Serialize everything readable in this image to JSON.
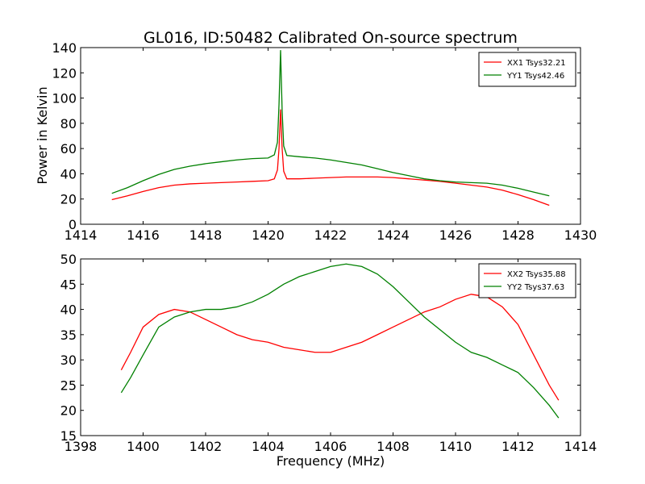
{
  "chart_data": [
    {
      "type": "line",
      "title": "GL016, ID:50482 Calibrated On-source spectrum",
      "xlabel": "",
      "ylabel": "Power in Kelvin",
      "xlim": [
        1414,
        1430
      ],
      "ylim": [
        0,
        140
      ],
      "xticks": [
        1414,
        1416,
        1418,
        1420,
        1422,
        1424,
        1426,
        1428,
        1430
      ],
      "yticks": [
        0,
        20,
        40,
        60,
        80,
        100,
        120,
        140
      ],
      "grid": false,
      "legend_position": "top-right",
      "series": [
        {
          "name": "XX1 Tsys32.21",
          "color": "#ff0000",
          "points": [
            [
              1415.0,
              19.5
            ],
            [
              1415.5,
              22.5
            ],
            [
              1416.0,
              26.0
            ],
            [
              1416.5,
              29.0
            ],
            [
              1417.0,
              31.0
            ],
            [
              1417.5,
              32.0
            ],
            [
              1418.0,
              32.5
            ],
            [
              1418.5,
              33.0
            ],
            [
              1419.0,
              33.5
            ],
            [
              1419.5,
              34.0
            ],
            [
              1420.0,
              34.5
            ],
            [
              1420.2,
              36.0
            ],
            [
              1420.3,
              43.0
            ],
            [
              1420.35,
              60.0
            ],
            [
              1420.4,
              91.0
            ],
            [
              1420.45,
              60.0
            ],
            [
              1420.5,
              42.0
            ],
            [
              1420.6,
              36.0
            ],
            [
              1421.0,
              36.0
            ],
            [
              1421.5,
              36.5
            ],
            [
              1422.0,
              37.0
            ],
            [
              1422.5,
              37.5
            ],
            [
              1423.0,
              37.5
            ],
            [
              1423.5,
              37.5
            ],
            [
              1424.0,
              37.0
            ],
            [
              1424.5,
              36.0
            ],
            [
              1425.0,
              35.0
            ],
            [
              1425.5,
              34.0
            ],
            [
              1426.0,
              32.5
            ],
            [
              1426.5,
              31.0
            ],
            [
              1427.0,
              29.5
            ],
            [
              1427.5,
              27.0
            ],
            [
              1428.0,
              23.5
            ],
            [
              1428.5,
              19.5
            ],
            [
              1429.0,
              15.0
            ]
          ]
        },
        {
          "name": "YY1 Tsys42.46",
          "color": "#008000",
          "points": [
            [
              1415.0,
              24.5
            ],
            [
              1415.5,
              29.0
            ],
            [
              1416.0,
              34.5
            ],
            [
              1416.5,
              39.5
            ],
            [
              1417.0,
              43.5
            ],
            [
              1417.5,
              46.0
            ],
            [
              1418.0,
              48.0
            ],
            [
              1418.5,
              49.5
            ],
            [
              1419.0,
              51.0
            ],
            [
              1419.5,
              52.0
            ],
            [
              1420.0,
              52.5
            ],
            [
              1420.2,
              55.0
            ],
            [
              1420.3,
              65.0
            ],
            [
              1420.35,
              95.0
            ],
            [
              1420.4,
              138.0
            ],
            [
              1420.45,
              90.0
            ],
            [
              1420.5,
              62.0
            ],
            [
              1420.6,
              54.5
            ],
            [
              1421.0,
              53.5
            ],
            [
              1421.5,
              52.5
            ],
            [
              1422.0,
              51.0
            ],
            [
              1422.5,
              49.0
            ],
            [
              1423.0,
              47.0
            ],
            [
              1423.5,
              44.0
            ],
            [
              1424.0,
              41.0
            ],
            [
              1424.5,
              38.5
            ],
            [
              1425.0,
              36.0
            ],
            [
              1425.5,
              34.5
            ],
            [
              1426.0,
              33.5
            ],
            [
              1426.5,
              33.0
            ],
            [
              1427.0,
              32.5
            ],
            [
              1427.5,
              31.0
            ],
            [
              1428.0,
              28.5
            ],
            [
              1428.5,
              25.5
            ],
            [
              1429.0,
              22.5
            ]
          ]
        }
      ]
    },
    {
      "type": "line",
      "title": "",
      "xlabel": "Frequency (MHz)",
      "ylabel": "",
      "xlim": [
        1398,
        1414
      ],
      "ylim": [
        15,
        50
      ],
      "xticks": [
        1398,
        1400,
        1402,
        1404,
        1406,
        1408,
        1410,
        1412,
        1414
      ],
      "yticks": [
        15,
        20,
        25,
        30,
        35,
        40,
        45,
        50
      ],
      "grid": false,
      "legend_position": "top-right",
      "series": [
        {
          "name": "XX2 Tsys35.88",
          "color": "#ff0000",
          "points": [
            [
              1399.3,
              28.0
            ],
            [
              1399.6,
              31.5
            ],
            [
              1400.0,
              36.5
            ],
            [
              1400.5,
              39.0
            ],
            [
              1401.0,
              40.0
            ],
            [
              1401.5,
              39.5
            ],
            [
              1402.0,
              38.0
            ],
            [
              1402.5,
              36.5
            ],
            [
              1403.0,
              35.0
            ],
            [
              1403.5,
              34.0
            ],
            [
              1404.0,
              33.5
            ],
            [
              1404.5,
              32.5
            ],
            [
              1405.0,
              32.0
            ],
            [
              1405.5,
              31.5
            ],
            [
              1406.0,
              31.5
            ],
            [
              1406.5,
              32.5
            ],
            [
              1407.0,
              33.5
            ],
            [
              1407.5,
              35.0
            ],
            [
              1408.0,
              36.5
            ],
            [
              1408.5,
              38.0
            ],
            [
              1409.0,
              39.5
            ],
            [
              1409.5,
              40.5
            ],
            [
              1410.0,
              42.0
            ],
            [
              1410.5,
              43.0
            ],
            [
              1411.0,
              42.5
            ],
            [
              1411.5,
              40.5
            ],
            [
              1412.0,
              37.0
            ],
            [
              1412.5,
              31.0
            ],
            [
              1413.0,
              25.0
            ],
            [
              1413.3,
              22.0
            ]
          ]
        },
        {
          "name": "YY2 Tsys37.63",
          "color": "#008000",
          "points": [
            [
              1399.3,
              23.5
            ],
            [
              1399.6,
              26.5
            ],
            [
              1400.0,
              31.0
            ],
            [
              1400.5,
              36.5
            ],
            [
              1401.0,
              38.5
            ],
            [
              1401.5,
              39.5
            ],
            [
              1402.0,
              40.0
            ],
            [
              1402.5,
              40.0
            ],
            [
              1403.0,
              40.5
            ],
            [
              1403.5,
              41.5
            ],
            [
              1404.0,
              43.0
            ],
            [
              1404.5,
              45.0
            ],
            [
              1405.0,
              46.5
            ],
            [
              1405.5,
              47.5
            ],
            [
              1406.0,
              48.5
            ],
            [
              1406.5,
              49.0
            ],
            [
              1407.0,
              48.5
            ],
            [
              1407.5,
              47.0
            ],
            [
              1408.0,
              44.5
            ],
            [
              1408.5,
              41.5
            ],
            [
              1409.0,
              38.5
            ],
            [
              1409.5,
              36.0
            ],
            [
              1410.0,
              33.5
            ],
            [
              1410.5,
              31.5
            ],
            [
              1411.0,
              30.5
            ],
            [
              1411.5,
              29.0
            ],
            [
              1412.0,
              27.5
            ],
            [
              1412.5,
              24.5
            ],
            [
              1413.0,
              21.0
            ],
            [
              1413.3,
              18.5
            ]
          ]
        }
      ]
    }
  ]
}
